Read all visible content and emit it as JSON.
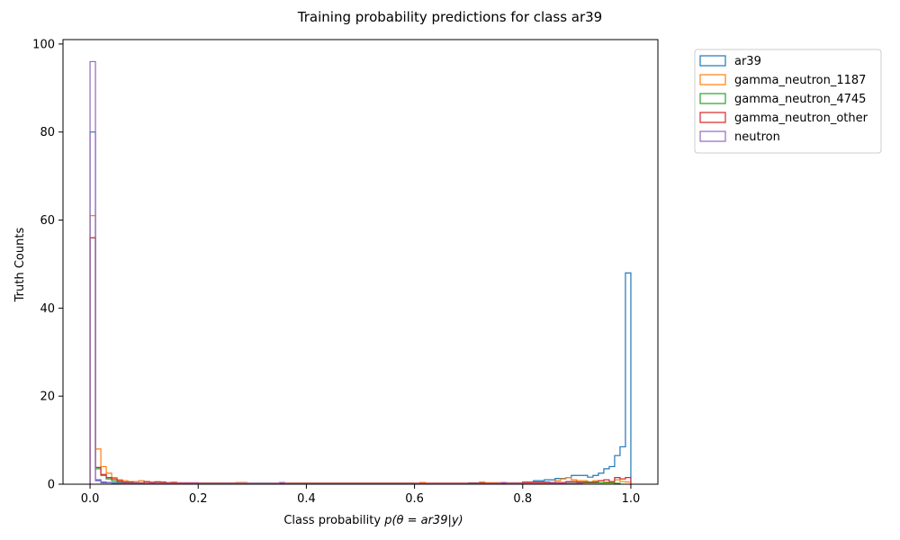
{
  "chart_data": {
    "type": "histogram-step",
    "title": "Training probability predictions for class ar39",
    "xlabel_prefix": "Class probability ",
    "xlabel_math": "p(θ = ar39|y)",
    "ylabel": "Truth Counts",
    "xlim": [
      -0.05,
      1.05
    ],
    "ylim": [
      0,
      101
    ],
    "xticks": [
      0.0,
      0.2,
      0.4,
      0.6,
      0.8,
      1.0
    ],
    "xtick_labels": [
      "0.0",
      "0.2",
      "0.4",
      "0.6",
      "0.8",
      "1.0"
    ],
    "yticks": [
      0,
      20,
      40,
      60,
      80,
      100
    ],
    "ytick_labels": [
      "0",
      "20",
      "40",
      "60",
      "80",
      "100"
    ],
    "bin_width": 0.01,
    "legend_position": "outside-upper-right",
    "series": [
      {
        "name": "ar39",
        "color": "#1f77b4",
        "points": [
          [
            0.0,
            80
          ],
          [
            0.01,
            1
          ],
          [
            0.02,
            0.5
          ],
          [
            0.03,
            0.4
          ],
          [
            0.05,
            0.3
          ],
          [
            0.1,
            0.2
          ],
          [
            0.4,
            0.2
          ],
          [
            0.7,
            0.3
          ],
          [
            0.8,
            0.5
          ],
          [
            0.82,
            0.8
          ],
          [
            0.84,
            1.0
          ],
          [
            0.86,
            1.3
          ],
          [
            0.88,
            1.5
          ],
          [
            0.89,
            2.0
          ],
          [
            0.92,
            1.6
          ],
          [
            0.93,
            2.0
          ],
          [
            0.94,
            2.5
          ],
          [
            0.95,
            3.5
          ],
          [
            0.96,
            4.0
          ],
          [
            0.97,
            6.5
          ],
          [
            0.98,
            8.5
          ],
          [
            0.99,
            48
          ]
        ]
      },
      {
        "name": "gamma_neutron_1187",
        "color": "#ff7f0e",
        "points": [
          [
            0.0,
            61
          ],
          [
            0.01,
            8
          ],
          [
            0.02,
            4
          ],
          [
            0.03,
            2.5
          ],
          [
            0.04,
            1.5
          ],
          [
            0.05,
            1
          ],
          [
            0.06,
            0.8
          ],
          [
            0.07,
            0.6
          ],
          [
            0.09,
            0.8
          ],
          [
            0.1,
            0.5
          ],
          [
            0.12,
            0.6
          ],
          [
            0.13,
            0.4
          ],
          [
            0.15,
            0.5
          ],
          [
            0.16,
            0.3
          ],
          [
            0.27,
            0.4
          ],
          [
            0.29,
            0.2
          ],
          [
            0.61,
            0.4
          ],
          [
            0.62,
            0.2
          ],
          [
            0.72,
            0.5
          ],
          [
            0.73,
            0.3
          ],
          [
            0.86,
            0.8
          ],
          [
            0.87,
            1.2
          ],
          [
            0.88,
            1.5
          ],
          [
            0.89,
            1.0
          ],
          [
            0.9,
            0.8
          ],
          [
            0.92,
            0.5
          ],
          [
            0.93,
            0.8
          ],
          [
            0.95,
            0.5
          ],
          [
            0.97,
            1.0
          ],
          [
            0.98,
            0.6
          ],
          [
            0.99,
            0.5
          ]
        ]
      },
      {
        "name": "gamma_neutron_4745",
        "color": "#2ca02c",
        "points": [
          [
            0.0,
            56
          ],
          [
            0.01,
            3.5
          ],
          [
            0.02,
            2.0
          ],
          [
            0.03,
            1.2
          ],
          [
            0.04,
            0.8
          ],
          [
            0.05,
            0.5
          ],
          [
            0.07,
            0.3
          ],
          [
            0.1,
            0.2
          ],
          [
            0.6,
            0.1
          ],
          [
            0.88,
            0.5
          ],
          [
            0.9,
            0.3
          ],
          [
            0.95,
            0.3
          ],
          [
            0.97,
            0.2
          ]
        ]
      },
      {
        "name": "gamma_neutron_other",
        "color": "#d62728",
        "points": [
          [
            0.0,
            56
          ],
          [
            0.01,
            3.8
          ],
          [
            0.02,
            2.2
          ],
          [
            0.03,
            1.5
          ],
          [
            0.04,
            1.2
          ],
          [
            0.05,
            0.8
          ],
          [
            0.06,
            0.5
          ],
          [
            0.08,
            0.3
          ],
          [
            0.1,
            0.6
          ],
          [
            0.11,
            0.4
          ],
          [
            0.12,
            0.5
          ],
          [
            0.14,
            0.3
          ],
          [
            0.2,
            0.2
          ],
          [
            0.6,
            0.2
          ],
          [
            0.8,
            0.5
          ],
          [
            0.85,
            0.4
          ],
          [
            0.88,
            0.6
          ],
          [
            0.9,
            0.5
          ],
          [
            0.94,
            0.8
          ],
          [
            0.95,
            1.0
          ],
          [
            0.96,
            0.6
          ],
          [
            0.97,
            1.5
          ],
          [
            0.98,
            1.2
          ],
          [
            0.99,
            1.5
          ]
        ]
      },
      {
        "name": "neutron",
        "color": "#9467bd",
        "points": [
          [
            0.0,
            96
          ],
          [
            0.01,
            0.8
          ],
          [
            0.02,
            0.3
          ],
          [
            0.04,
            0.2
          ],
          [
            0.35,
            0.4
          ],
          [
            0.36,
            0.1
          ],
          [
            0.76,
            0.4
          ],
          [
            0.77,
            0.2
          ],
          [
            0.9,
            0.2
          ]
        ]
      }
    ]
  }
}
